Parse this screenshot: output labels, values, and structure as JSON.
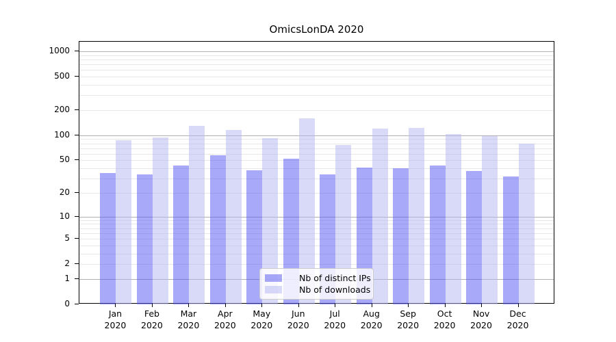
{
  "chart_data": {
    "type": "bar",
    "title": "OmicsLonDA 2020",
    "scale": "log1p",
    "grid": true,
    "legend_position": "lower center",
    "categories": [
      "Jan 2020",
      "Feb 2020",
      "Mar 2020",
      "Apr 2020",
      "May 2020",
      "Jun 2020",
      "Jul 2020",
      "Aug 2020",
      "Sep 2020",
      "Oct 2020",
      "Nov 2020",
      "Dec 2020"
    ],
    "series": [
      {
        "name": "Nb of distinct IPs",
        "color": "#5454f4",
        "alpha": 0.5,
        "values": [
          35,
          34,
          43,
          58,
          38,
          52,
          34,
          41,
          40,
          43,
          37,
          32
        ]
      },
      {
        "name": "Nb of downloads",
        "color": "#b3b3f1",
        "alpha": 0.5,
        "values": [
          88,
          95,
          131,
          117,
          92,
          160,
          76,
          120,
          122,
          104,
          98,
          79
        ]
      }
    ],
    "y_ticks": [
      1000,
      500,
      200,
      100,
      50,
      20,
      10,
      5,
      2,
      1,
      0
    ],
    "ylim": [
      0,
      1300
    ],
    "xlabel": "",
    "ylabel": "",
    "grid_major_color": "#b0b0b0",
    "grid_minor_color": "#e7e7e7"
  }
}
